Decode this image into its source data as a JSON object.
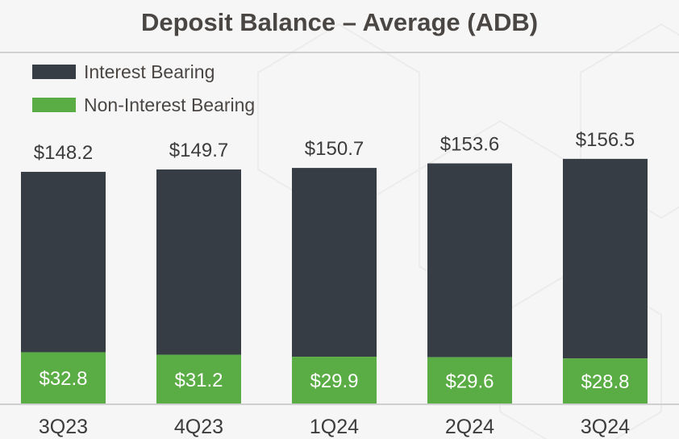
{
  "title": "Deposit Balance – Average (ADB)",
  "colors": {
    "interest_bearing": "#363d45",
    "non_interest_bearing": "#5aac44",
    "title": "#4a4644",
    "text": "#3c3c3c"
  },
  "chart_data": {
    "type": "bar",
    "stacked": true,
    "title": "Deposit Balance – Average (ADB)",
    "categories": [
      "3Q23",
      "4Q23",
      "1Q24",
      "2Q24",
      "3Q24"
    ],
    "series": [
      {
        "name": "Non-Interest Bearing",
        "values": [
          32.8,
          31.2,
          29.9,
          29.6,
          28.8
        ],
        "labels": [
          "$32.8",
          "$31.2",
          "$29.9",
          "$29.6",
          "$28.8"
        ]
      },
      {
        "name": "Interest Bearing",
        "values": [
          115.4,
          118.5,
          120.8,
          124.0,
          127.7
        ]
      }
    ],
    "totals": [
      148.2,
      149.7,
      150.7,
      153.6,
      156.5
    ],
    "total_labels": [
      "$148.2",
      "$149.7",
      "$150.7",
      "$153.6",
      "$156.5"
    ],
    "legend": {
      "position": "top-left",
      "entries": [
        "Interest Bearing",
        "Non-Interest Bearing"
      ]
    },
    "grid": false
  }
}
